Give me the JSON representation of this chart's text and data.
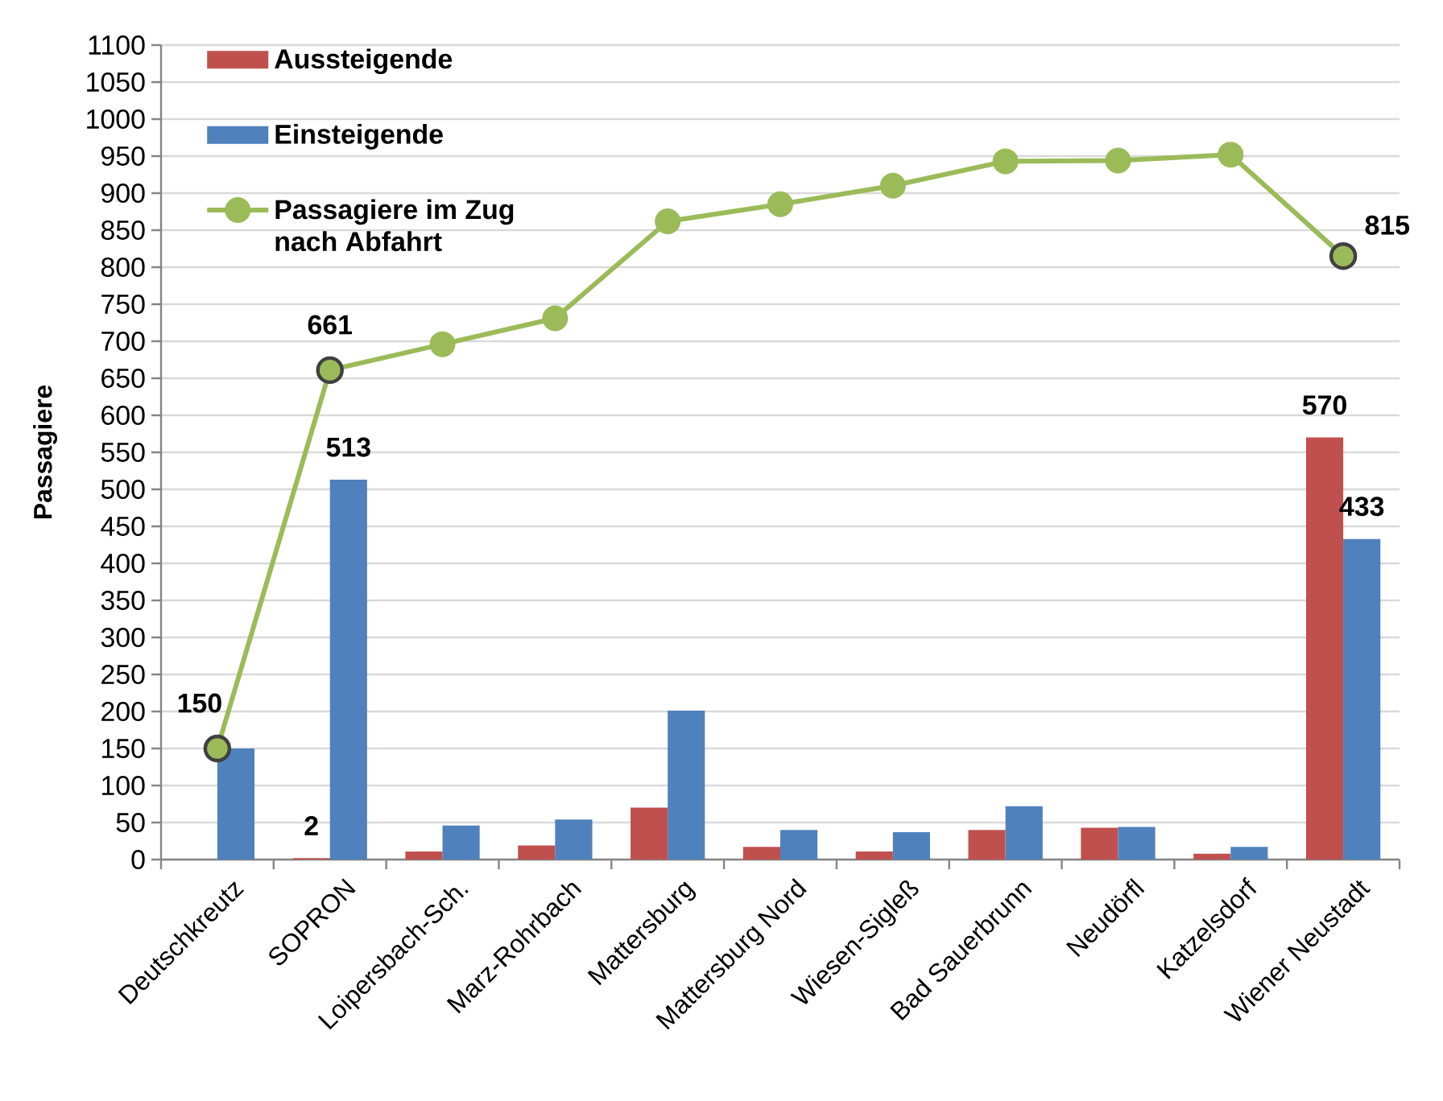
{
  "chart_data": {
    "type": "bar",
    "ylabel": "Passagiere",
    "categories": [
      "Deutschkreutz",
      "SOPRON",
      "Loipersbach-Sch.",
      "Marz-Rohrbach",
      "Mattersburg",
      "Mattersburg Nord",
      "Wiesen-Sigleß",
      "Bad Sauerbrunn",
      "Neudörfl",
      "Katzelsdorf",
      "Wiener Neustadt"
    ],
    "series": [
      {
        "name": "Aussteigende",
        "color": "#c0504d",
        "values": [
          null,
          2,
          11,
          19,
          70,
          17,
          11,
          40,
          43,
          8,
          570
        ],
        "value_labels": [
          null,
          "2",
          null,
          null,
          null,
          null,
          null,
          null,
          null,
          null,
          "570"
        ]
      },
      {
        "name": "Einsteigende",
        "color": "#4f81bd",
        "values": [
          150,
          513,
          46,
          54,
          201,
          40,
          37,
          72,
          44,
          17,
          433
        ],
        "value_labels": [
          null,
          "513",
          null,
          null,
          null,
          null,
          null,
          null,
          null,
          null,
          "433"
        ]
      },
      {
        "name": "Passagiere im Zug nach Abfahrt",
        "type": "line",
        "color": "#9bbb59",
        "marker": "circle",
        "values": [
          150,
          661,
          696,
          731,
          862,
          885,
          910,
          943,
          944,
          952,
          815
        ],
        "value_labels": [
          "150",
          "661",
          null,
          null,
          null,
          null,
          null,
          null,
          null,
          null,
          "815"
        ]
      }
    ],
    "ylim": [
      0,
      1100
    ],
    "yticks": [
      0,
      50,
      100,
      150,
      200,
      250,
      300,
      350,
      400,
      450,
      500,
      550,
      600,
      650,
      700,
      750,
      800,
      850,
      900,
      950,
      1000,
      1050,
      1100
    ],
    "grid": "y",
    "legend": "top left"
  }
}
